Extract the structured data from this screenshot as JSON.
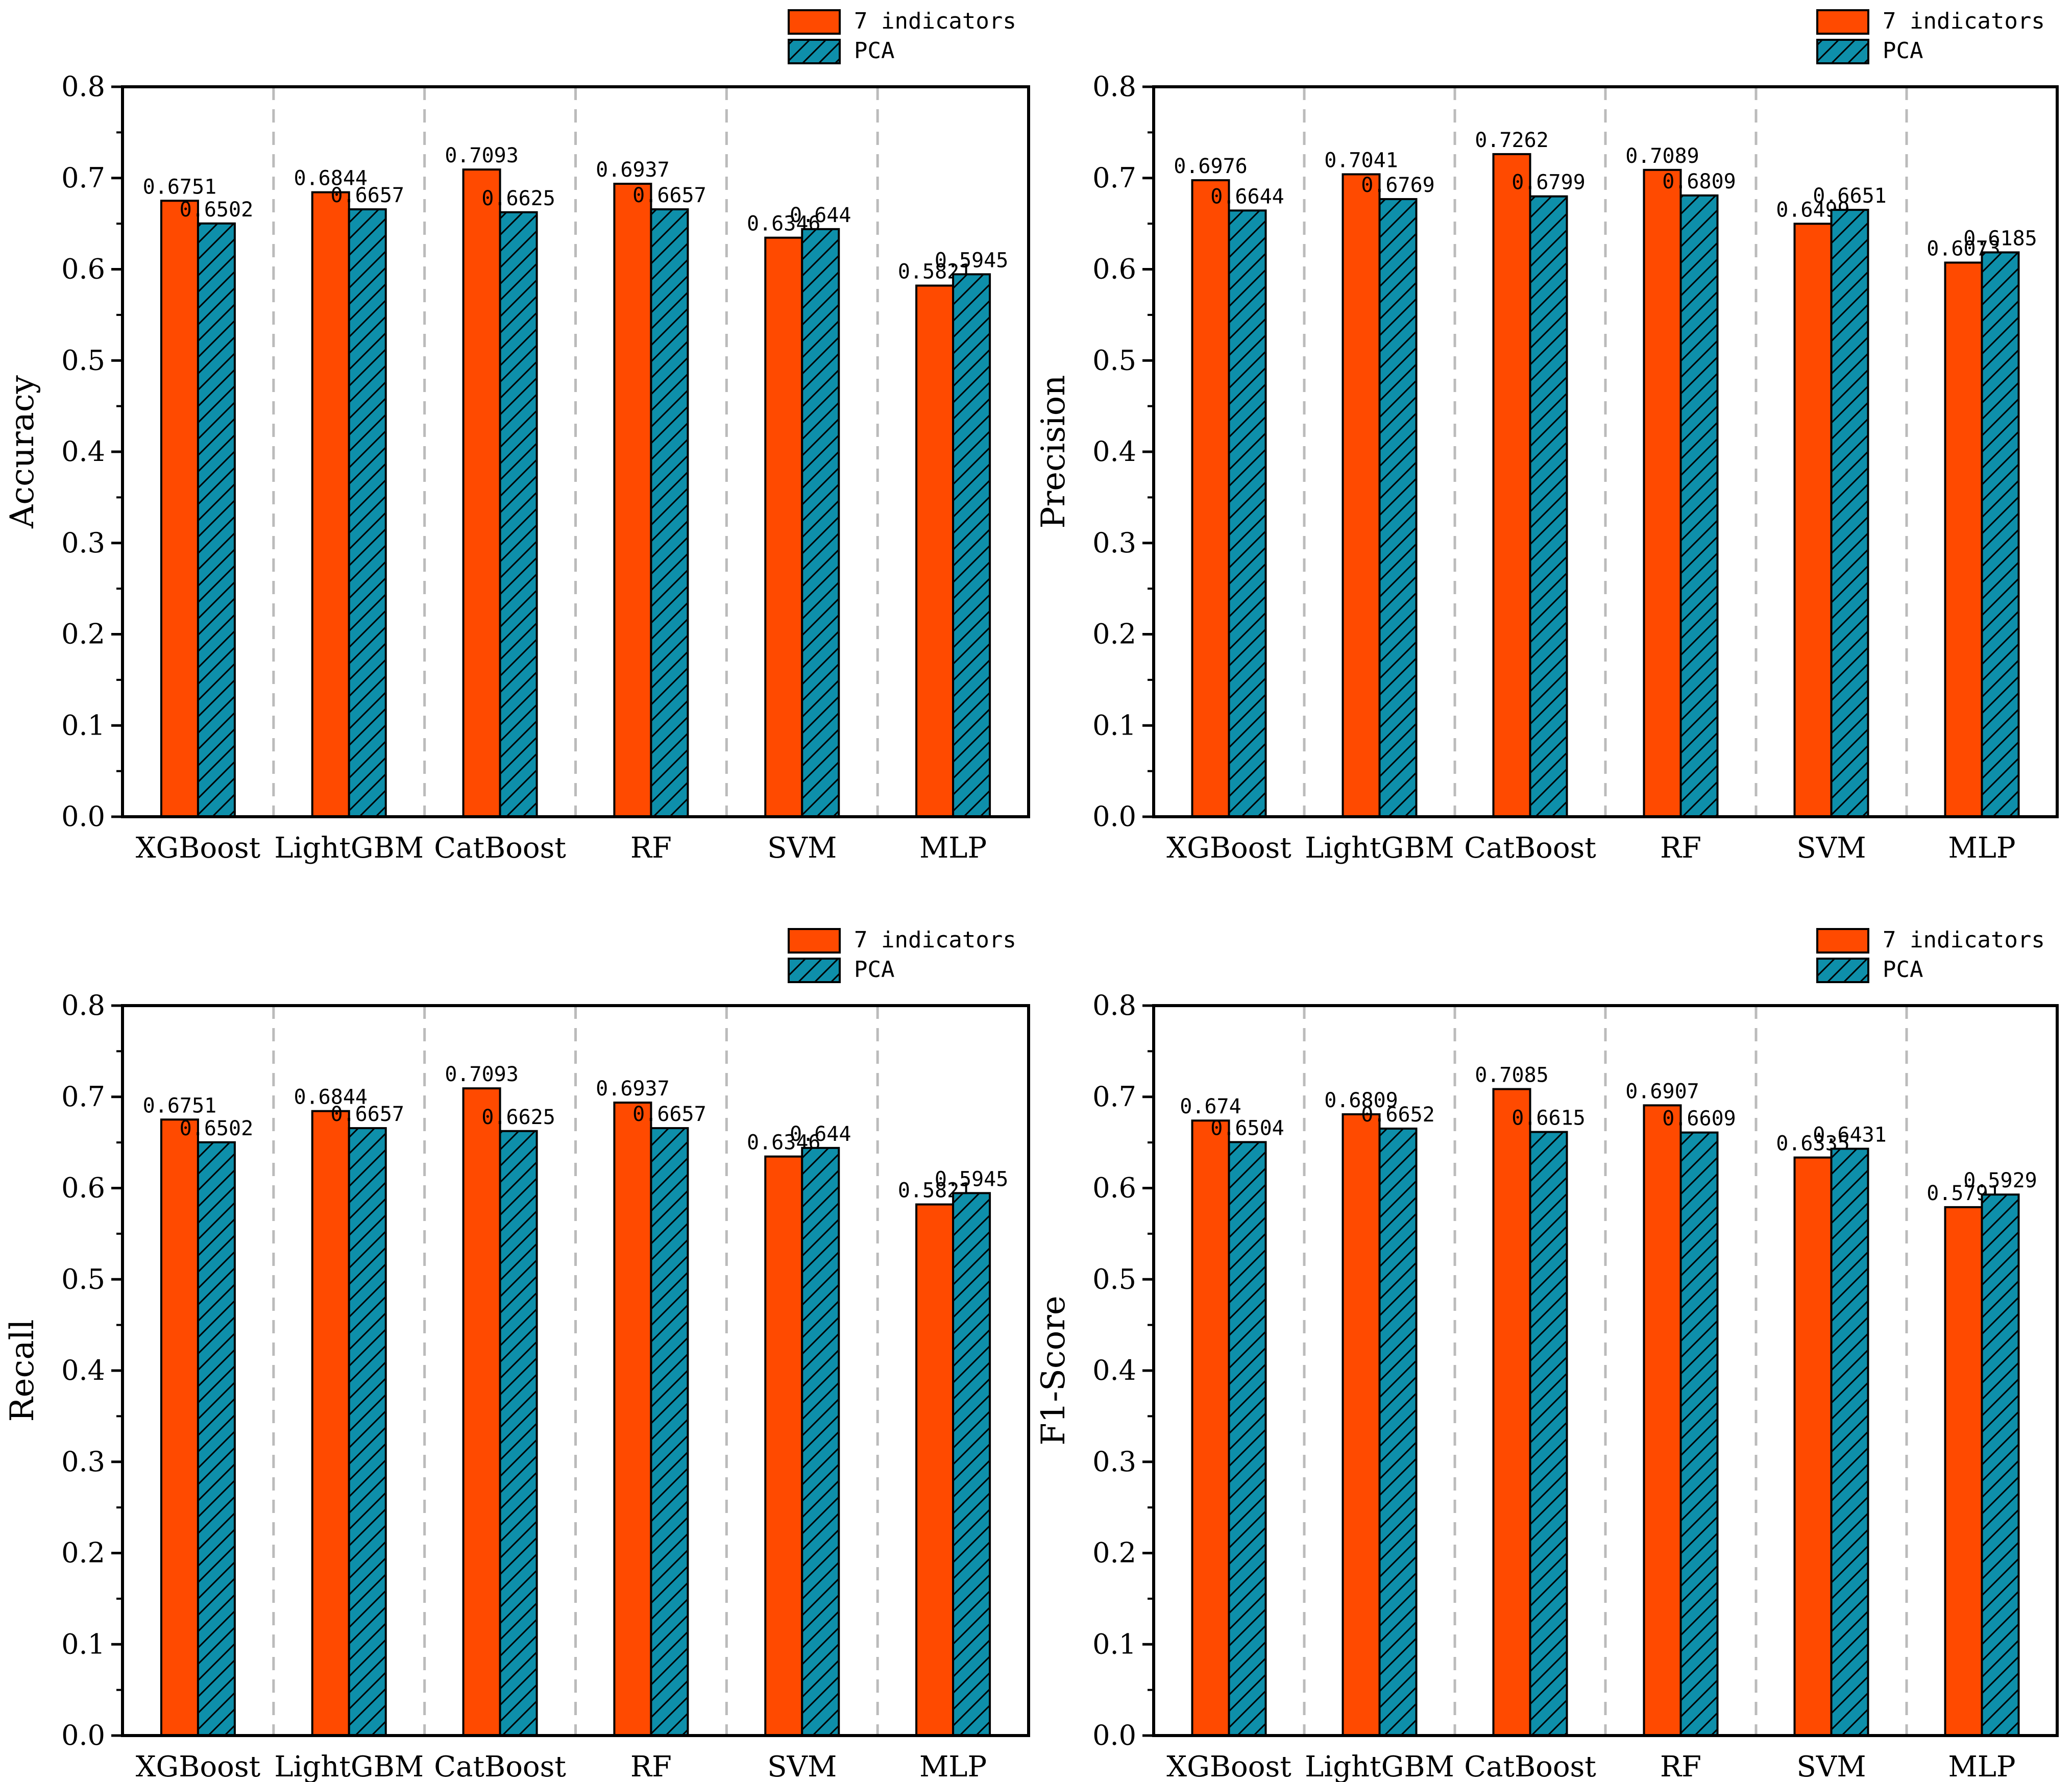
{
  "colors": {
    "series1": "#FF4A00",
    "series2": "#0E8FAA",
    "axis": "#000000",
    "divider": "#BBBBBB"
  },
  "chart_data": [
    {
      "type": "bar",
      "panel": "top-left",
      "categories": [
        "XGBoost",
        "LightGBM",
        "CatBoost",
        "RF",
        "SVM",
        "MLP"
      ],
      "series": [
        {
          "name": "7 indicators",
          "values": [
            0.6751,
            0.6844,
            0.7093,
            0.6937,
            0.6346,
            0.5821
          ],
          "labels": [
            "0.6751",
            "0.6844",
            "0.7093",
            "0.6937",
            "0.6346",
            "0.5821"
          ]
        },
        {
          "name": "PCA",
          "pattern": "hatched",
          "values": [
            0.6502,
            0.6657,
            0.6625,
            0.6657,
            0.644,
            0.5945
          ],
          "labels": [
            "0.6502",
            "0.6657",
            "0.6625",
            "0.6657",
            "0.644",
            "0.5945"
          ]
        }
      ],
      "ylabel": "Accuracy",
      "ylim": [
        0,
        0.8
      ],
      "yticks": [
        "0.0",
        "0.1",
        "0.2",
        "0.3",
        "0.4",
        "0.5",
        "0.6",
        "0.7",
        "0.8"
      ],
      "legend_position": "top-right, outside"
    },
    {
      "type": "bar",
      "panel": "top-right",
      "categories": [
        "XGBoost",
        "LightGBM",
        "CatBoost",
        "RF",
        "SVM",
        "MLP"
      ],
      "series": [
        {
          "name": "7 indicators",
          "values": [
            0.6976,
            0.7041,
            0.7262,
            0.7089,
            0.6499,
            0.6073
          ],
          "labels": [
            "0.6976",
            "0.7041",
            "0.7262",
            "0.7089",
            "0.6499",
            "0.6073"
          ]
        },
        {
          "name": "PCA",
          "pattern": "hatched",
          "values": [
            0.6644,
            0.6769,
            0.6799,
            0.6809,
            0.6651,
            0.6185
          ],
          "labels": [
            "0.6644",
            "0.6769",
            "0.6799",
            "0.6809",
            "0.6651",
            "0.6185"
          ]
        }
      ],
      "ylabel": "Precision",
      "ylim": [
        0,
        0.8
      ],
      "yticks": [
        "0.0",
        "0.1",
        "0.2",
        "0.3",
        "0.4",
        "0.5",
        "0.6",
        "0.7",
        "0.8"
      ],
      "legend_position": "top-right, outside"
    },
    {
      "type": "bar",
      "panel": "bottom-left",
      "categories": [
        "XGBoost",
        "LightGBM",
        "CatBoost",
        "RF",
        "SVM",
        "MLP"
      ],
      "series": [
        {
          "name": "7 indicators",
          "values": [
            0.6751,
            0.6844,
            0.7093,
            0.6937,
            0.6346,
            0.5821
          ],
          "labels": [
            "0.6751",
            "0.6844",
            "0.7093",
            "0.6937",
            "0.6346",
            "0.5821"
          ]
        },
        {
          "name": "PCA",
          "pattern": "hatched",
          "values": [
            0.6502,
            0.6657,
            0.6625,
            0.6657,
            0.644,
            0.5945
          ],
          "labels": [
            "0.6502",
            "0.6657",
            "0.6625",
            "0.6657",
            "0.644",
            "0.5945"
          ]
        }
      ],
      "ylabel": "Recall",
      "ylim": [
        0,
        0.8
      ],
      "yticks": [
        "0.0",
        "0.1",
        "0.2",
        "0.3",
        "0.4",
        "0.5",
        "0.6",
        "0.7",
        "0.8"
      ],
      "legend_position": "top-right, outside"
    },
    {
      "type": "bar",
      "panel": "bottom-right",
      "categories": [
        "XGBoost",
        "LightGBM",
        "CatBoost",
        "RF",
        "SVM",
        "MLP"
      ],
      "series": [
        {
          "name": "7 indicators",
          "values": [
            0.674,
            0.6809,
            0.7085,
            0.6907,
            0.6335,
            0.5791
          ],
          "labels": [
            "0.674",
            "0.6809",
            "0.7085",
            "0.6907",
            "0.6335",
            "0.5791"
          ]
        },
        {
          "name": "PCA",
          "pattern": "hatched",
          "values": [
            0.6504,
            0.6652,
            0.6615,
            0.6609,
            0.6431,
            0.5929
          ],
          "labels": [
            "0.6504",
            "0.6652",
            "0.6615",
            "0.6609",
            "0.6431",
            "0.5929"
          ]
        }
      ],
      "ylabel": "F1-Score",
      "ylim": [
        0,
        0.8
      ],
      "yticks": [
        "0.0",
        "0.1",
        "0.2",
        "0.3",
        "0.4",
        "0.5",
        "0.6",
        "0.7",
        "0.8"
      ],
      "legend_position": "top-right, outside"
    }
  ]
}
